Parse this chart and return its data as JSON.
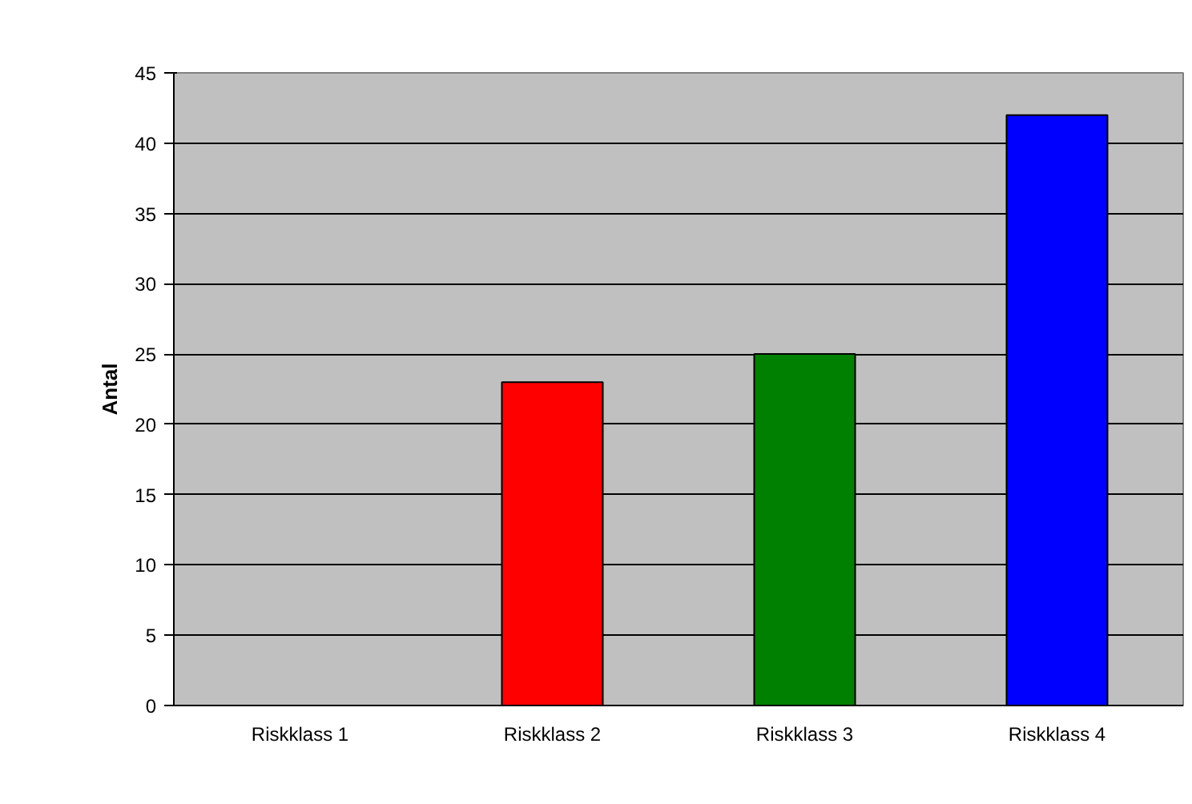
{
  "chart_data": {
    "type": "bar",
    "ylabel": "Antal",
    "categories": [
      "Riskklass 1",
      "Riskklass 2",
      "Riskklass 3",
      "Riskklass 4"
    ],
    "values": [
      0,
      23,
      25,
      42
    ],
    "colors": [
      "#000000",
      "#ff0000",
      "#008000",
      "#0000ff"
    ],
    "ylim": [
      0,
      45
    ],
    "yticks": [
      0,
      5,
      10,
      15,
      20,
      25,
      30,
      35,
      40,
      45
    ],
    "grid": "y"
  }
}
